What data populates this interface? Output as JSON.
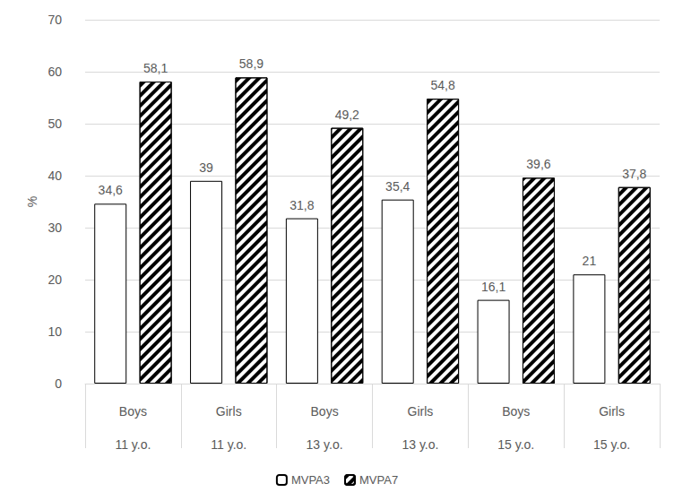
{
  "chart_data": {
    "type": "bar",
    "categories": [
      "Boys\n11 y.o.",
      "Girls\n11 y.o.",
      "Boys\n13 y.o.",
      "Girls\n13 y.o.",
      "Boys\n15 y.o.",
      "Girls\n15 y.o."
    ],
    "y_label": "%",
    "series": [
      {
        "name": "MVPA3",
        "color": "#ffffff",
        "values": [
          34.6,
          39,
          31.8,
          35.4,
          16.1,
          21
        ],
        "value_labels": [
          "34,6",
          "39",
          "31,8",
          "35,4",
          "16,1",
          "21"
        ]
      },
      {
        "name": "MVPA7",
        "color": "#000000",
        "marker": "hatch",
        "values": [
          58.1,
          58.9,
          49.2,
          54.8,
          39.6,
          37.8
        ],
        "value_labels": [
          "58,1",
          "58,9",
          "49,2",
          "54,8",
          "39,6",
          "37,8"
        ]
      }
    ],
    "ylim": [
      0,
      70
    ],
    "yticks": [
      0,
      10,
      20,
      30,
      40,
      50,
      60,
      70
    ],
    "grid": true,
    "legend": "bottom",
    "data_labels": true
  }
}
